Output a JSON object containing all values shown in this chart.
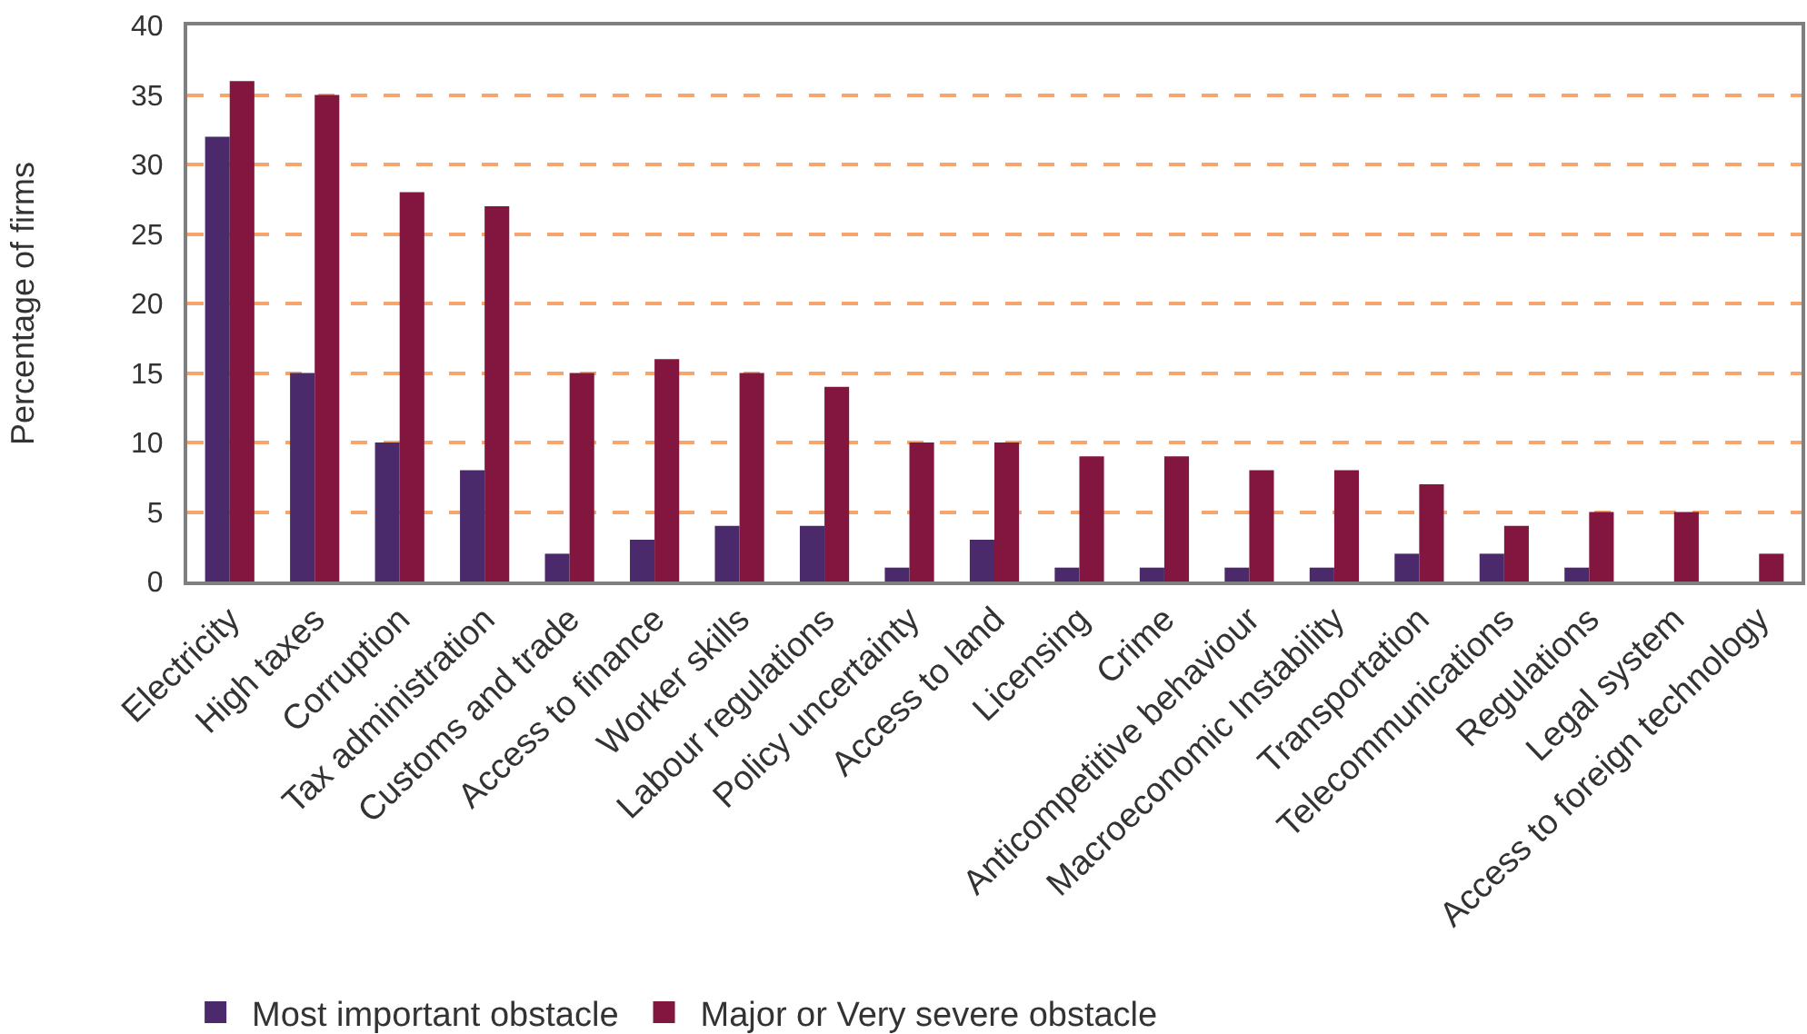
{
  "chart_data": {
    "type": "bar",
    "ylabel": "Percentage of firms",
    "categories": [
      "Electricity",
      "High taxes",
      "Corruption",
      "Tax administration",
      "Customs and trade",
      "Access to finance",
      "Worker skills",
      "Labour regulations",
      "Policy uncertainty",
      "Access to land",
      "Licensing",
      "Crime",
      "Anticompetitive behaviour",
      "Macroeconomic Instability",
      "Transportation",
      "Telecommunications",
      "Regulations",
      "Legal system",
      "Access to foreign technology"
    ],
    "series": [
      {
        "name": "Most important obstacle",
        "color": "#4b2a6b",
        "values": [
          32,
          15,
          10,
          8,
          2,
          3,
          4,
          4,
          1,
          3,
          1,
          1,
          1,
          1,
          2,
          2,
          1,
          null,
          null
        ]
      },
      {
        "name": "Major or Very severe obstacle",
        "color": "#82163f",
        "values": [
          36,
          35,
          28,
          27,
          15,
          16,
          15,
          14,
          10,
          10,
          9,
          9,
          8,
          8,
          7,
          4,
          5,
          5,
          2
        ]
      }
    ],
    "ylim": [
      0,
      40
    ],
    "yticks": [
      0,
      5,
      10,
      15,
      20,
      25,
      30,
      35,
      40
    ],
    "grid": "y",
    "legend": "bottom left"
  }
}
